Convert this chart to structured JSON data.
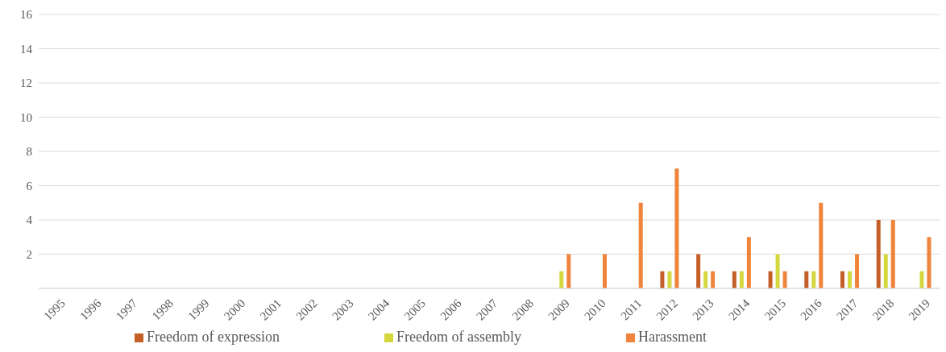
{
  "chart_data": {
    "type": "bar",
    "categories": [
      "1995",
      "1996",
      "1997",
      "1998",
      "1999",
      "2000",
      "2001",
      "2002",
      "2003",
      "2004",
      "2005",
      "2006",
      "2007",
      "2008",
      "2009",
      "2010",
      "2011",
      "2012",
      "2013",
      "2014",
      "2015",
      "2016",
      "2017",
      "2018",
      "2019"
    ],
    "series": [
      {
        "name": "Freedom of expression",
        "color": "#c55f27",
        "values": [
          0,
          0,
          0,
          0,
          0,
          0,
          0,
          0,
          0,
          0,
          0,
          0,
          0,
          0,
          0,
          0,
          0,
          1,
          2,
          1,
          1,
          1,
          1,
          4,
          0
        ]
      },
      {
        "name": "Freedom of assembly",
        "color": "#d5d73f",
        "values": [
          0,
          0,
          0,
          0,
          0,
          0,
          0,
          0,
          0,
          0,
          0,
          0,
          0,
          0,
          1,
          0,
          0,
          1,
          1,
          1,
          2,
          1,
          1,
          2,
          1
        ]
      },
      {
        "name": "Harassment",
        "color": "#f0843c",
        "values": [
          0,
          0,
          0,
          0,
          0,
          0,
          0,
          0,
          0,
          0,
          0,
          0,
          0,
          0,
          2,
          2,
          5,
          7,
          1,
          3,
          1,
          5,
          2,
          4,
          3
        ]
      }
    ],
    "ylim": [
      0,
      16
    ],
    "yticks": [
      {
        "value": 0,
        "label": null
      },
      2,
      4,
      6,
      8,
      10,
      12,
      14,
      16
    ],
    "grid": "y",
    "legend": "bottom"
  }
}
